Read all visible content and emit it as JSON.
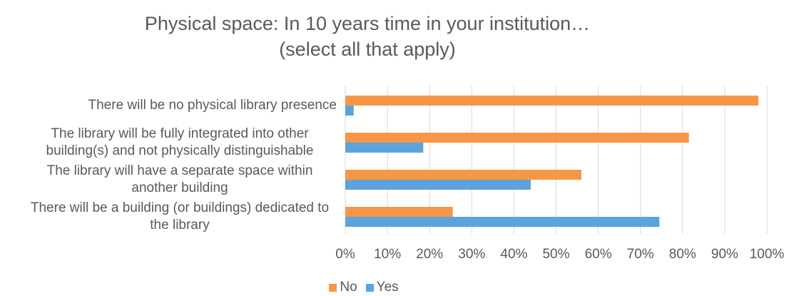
{
  "chart_data": {
    "type": "barh",
    "title": "Physical space: In 10 years time in your institution…",
    "subtitle": "(select all that apply)",
    "categories": [
      "There will be no physical library presence",
      "The library will be fully integrated into other building(s) and not physically distinguishable",
      "The library will have a separate space within another building",
      "There will be a building (or buildings) dedicated to the library"
    ],
    "series": [
      {
        "name": "No",
        "color": "#f79646",
        "values": [
          98,
          81.5,
          56,
          25.5
        ]
      },
      {
        "name": "Yes",
        "color": "#5ba3dc",
        "values": [
          2,
          18.5,
          44,
          74.5
        ]
      }
    ],
    "xlim": [
      0,
      100
    ],
    "xticks": [
      {
        "value": 0,
        "label": "0%"
      },
      {
        "value": 10,
        "label": "10%"
      },
      {
        "value": 20,
        "label": "20%"
      },
      {
        "value": 30,
        "label": "30%"
      },
      {
        "value": 40,
        "label": "40%"
      },
      {
        "value": 50,
        "label": "50%"
      },
      {
        "value": 60,
        "label": "60%"
      },
      {
        "value": 70,
        "label": "70%"
      },
      {
        "value": 80,
        "label": "80%"
      },
      {
        "value": 90,
        "label": "90%"
      },
      {
        "value": 100,
        "label": "100%"
      }
    ],
    "grid": true,
    "legend": "bottom"
  }
}
